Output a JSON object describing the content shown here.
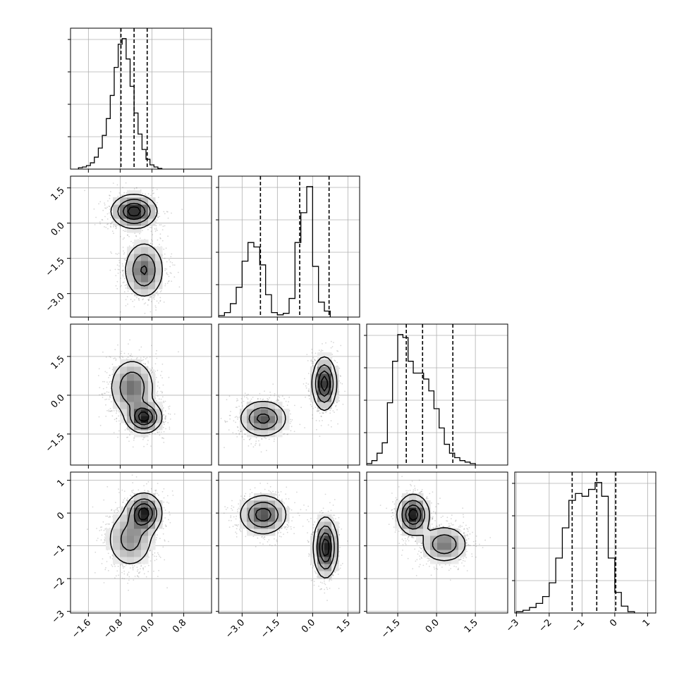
{
  "chart_data": {
    "type": "scatter",
    "title": "",
    "variables": [
      {
        "ticks": [
          -1.6,
          -0.8,
          0.0,
          0.8
        ],
        "tick_labels": [
          "−1.6",
          "−0.8",
          "−0.0",
          "0.8"
        ],
        "range": [
          -2.05,
          1.5
        ],
        "quantiles": [
          -0.78,
          -0.45,
          -0.12
        ],
        "histogram": {
          "start": -1.85,
          "step": 0.1,
          "counts": [
            2,
            3,
            5,
            9,
            17,
            30,
            48,
            72,
            105,
            145,
            178,
            186,
            157,
            118,
            80,
            50,
            28,
            14,
            6,
            3,
            1
          ]
        }
      },
      {
        "ticks": [
          -3.0,
          -1.5,
          0.0,
          1.5
        ],
        "tick_labels": [
          "−3.0",
          "−1.5",
          "0.0",
          "1.5"
        ],
        "range": [
          -4.0,
          2.0
        ],
        "quantiles": [
          -2.22,
          -0.55,
          0.7
        ],
        "histogram": {
          "start": -4.0,
          "step": 0.25,
          "counts": [
            2,
            6,
            18,
            40,
            75,
            100,
            94,
            70,
            30,
            6,
            3,
            5,
            25,
            100,
            140,
            175,
            68,
            20,
            8
          ]
        }
      },
      {
        "ticks": [
          -1.5,
          0.0,
          1.5
        ],
        "tick_labels": [
          "−1.5",
          "0.0",
          "1.5"
        ],
        "range": [
          -2.7,
          2.75
        ],
        "quantiles": [
          -1.17,
          -0.54,
          0.63
        ],
        "histogram": {
          "start": -2.7,
          "step": 0.2,
          "counts": [
            1,
            3,
            8,
            15,
            42,
            70,
            88,
            86,
            70,
            62,
            62,
            58,
            50,
            38,
            25,
            14,
            8,
            5,
            3,
            2,
            1
          ]
        }
      },
      {
        "ticks": [
          -3,
          -2,
          -1,
          0,
          1
        ],
        "tick_labels": [
          "−3",
          "−2",
          "−1",
          "0",
          "1"
        ],
        "range": [
          -3.05,
          1.25
        ],
        "quantiles": [
          -1.3,
          -0.55,
          0.03
        ],
        "histogram": {
          "start": -3.0,
          "step": 0.2,
          "counts": [
            1,
            2,
            4,
            7,
            12,
            22,
            40,
            62,
            82,
            87,
            85,
            90,
            95,
            85,
            40,
            15,
            5,
            1
          ]
        }
      }
    ],
    "pairs": [
      {
        "row": 1,
        "col": 0,
        "modes": [
          {
            "cx": -0.45,
            "cy": 0.5,
            "sx": 0.28,
            "sy": 0.35,
            "w": 0.5
          },
          {
            "cx": -0.2,
            "cy": -2.0,
            "sx": 0.25,
            "sy": 0.6,
            "w": 0.5
          }
        ]
      },
      {
        "row": 2,
        "col": 0,
        "modes": [
          {
            "cx": -0.2,
            "cy": -0.85,
            "sx": 0.22,
            "sy": 0.3,
            "w": 0.4
          },
          {
            "cx": -0.5,
            "cy": 0.3,
            "sx": 0.28,
            "sy": 0.55,
            "w": 0.6
          }
        ]
      },
      {
        "row": 2,
        "col": 1,
        "modes": [
          {
            "cx": -2.1,
            "cy": -0.9,
            "sx": 0.5,
            "sy": 0.35,
            "w": 0.5
          },
          {
            "cx": 0.5,
            "cy": 0.45,
            "sx": 0.25,
            "sy": 0.5,
            "w": 0.5
          }
        ]
      },
      {
        "row": 3,
        "col": 0,
        "modes": [
          {
            "cx": -0.2,
            "cy": 0.0,
            "sx": 0.22,
            "sy": 0.3,
            "w": 0.5
          },
          {
            "cx": -0.55,
            "cy": -0.8,
            "sx": 0.3,
            "sy": 0.45,
            "w": 0.5
          }
        ]
      },
      {
        "row": 3,
        "col": 1,
        "modes": [
          {
            "cx": -2.1,
            "cy": -0.05,
            "sx": 0.5,
            "sy": 0.3,
            "w": 0.5
          },
          {
            "cx": 0.55,
            "cy": -1.05,
            "sx": 0.25,
            "sy": 0.45,
            "w": 0.5
          }
        ]
      },
      {
        "row": 3,
        "col": 2,
        "modes": [
          {
            "cx": -0.9,
            "cy": -0.05,
            "sx": 0.3,
            "sy": 0.3,
            "w": 0.55
          },
          {
            "cx": 0.3,
            "cy": -0.95,
            "sx": 0.45,
            "sy": 0.28,
            "w": 0.45
          }
        ]
      }
    ]
  }
}
